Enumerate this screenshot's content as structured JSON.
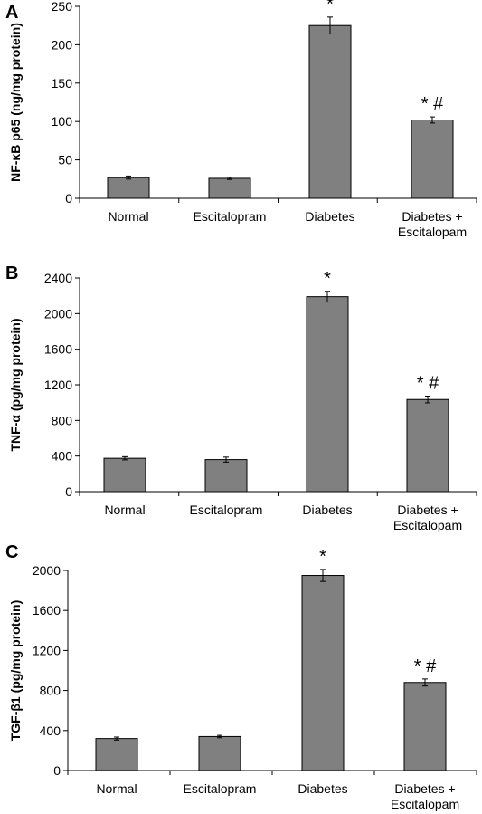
{
  "colors": {
    "bar": "#808080",
    "axis": "#000000"
  },
  "chart_data": [
    {
      "panel": "A",
      "type": "bar",
      "ylabel": "NF-κB p65 (ng/mg protein)",
      "ylim": [
        0,
        250
      ],
      "yticks": [
        0,
        50,
        100,
        150,
        200,
        250
      ],
      "categories": [
        [
          "Normal"
        ],
        [
          "Escitalopram"
        ],
        [
          "Diabetes"
        ],
        [
          "Diabetes +",
          "Escitalopam"
        ]
      ],
      "values": [
        27,
        26,
        225,
        102
      ],
      "errors": [
        2,
        1.5,
        11,
        4
      ],
      "annotations": [
        "",
        "",
        "*",
        "* #"
      ]
    },
    {
      "panel": "B",
      "type": "bar",
      "ylabel": "TNF-α (pg/mg protein)",
      "ylim": [
        0,
        2400
      ],
      "yticks": [
        0,
        400,
        800,
        1200,
        1600,
        2000,
        2400
      ],
      "categories": [
        [
          "Normal"
        ],
        [
          "Escitalopram"
        ],
        [
          "Diabetes"
        ],
        [
          "Diabetes +",
          "Escitalopam"
        ]
      ],
      "values": [
        375,
        360,
        2190,
        1035
      ],
      "errors": [
        18,
        28,
        60,
        38
      ],
      "annotations": [
        "",
        "",
        "*",
        "* #"
      ]
    },
    {
      "panel": "C",
      "type": "bar",
      "ylabel": "TGF-β1 (pg/mg protein)",
      "ylim": [
        0,
        2000
      ],
      "yticks": [
        0,
        400,
        800,
        1200,
        1600,
        2000
      ],
      "categories": [
        [
          "Normal"
        ],
        [
          "Escitalopram"
        ],
        [
          "Diabetes"
        ],
        [
          "Diabetes +",
          "Escitalopam"
        ]
      ],
      "values": [
        320,
        340,
        1950,
        880
      ],
      "errors": [
        15,
        12,
        60,
        35
      ],
      "annotations": [
        "",
        "",
        "*",
        "* #"
      ]
    }
  ]
}
